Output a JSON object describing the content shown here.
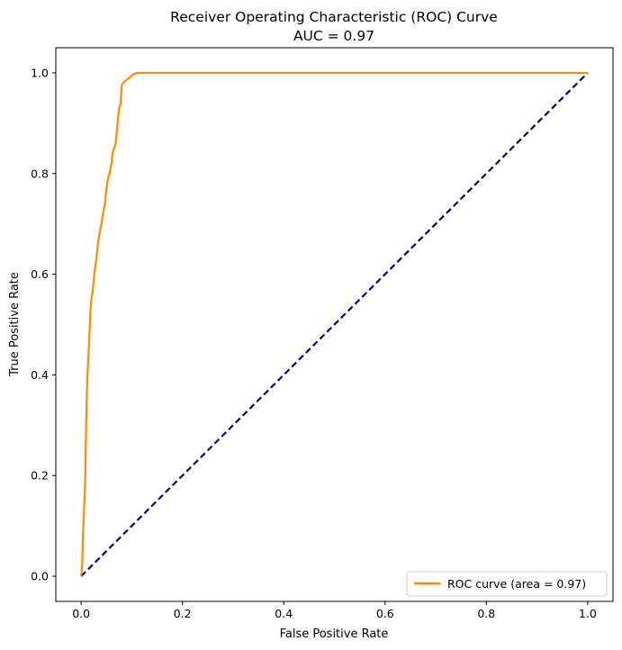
{
  "chart_data": {
    "type": "line",
    "title": "Receiver Operating Characteristic (ROC) Curve",
    "subtitle": "AUC = 0.97",
    "xlabel": "False Positive Rate",
    "ylabel": "True Positive Rate",
    "xlim": [
      -0.05,
      1.05
    ],
    "ylim": [
      -0.05,
      1.05
    ],
    "xticks": [
      0.0,
      0.2,
      0.4,
      0.6,
      0.8,
      1.0
    ],
    "yticks": [
      0.0,
      0.2,
      0.4,
      0.6,
      0.8,
      1.0
    ],
    "xtick_labels": [
      "0.0",
      "0.2",
      "0.4",
      "0.6",
      "0.8",
      "1.0"
    ],
    "ytick_labels": [
      "0.0",
      "0.2",
      "0.4",
      "0.6",
      "0.8",
      "1.0"
    ],
    "grid": false,
    "legend": {
      "position": "lower-right",
      "entries": [
        "ROC curve (area = 0.97)"
      ]
    },
    "series": [
      {
        "name": "ROC curve (area = 0.97)",
        "color": "#ff8c00",
        "style": "solid",
        "x": [
          0.0,
          0.002,
          0.004,
          0.006,
          0.008,
          0.01,
          0.012,
          0.014,
          0.016,
          0.018,
          0.02,
          0.022,
          0.024,
          0.026,
          0.03,
          0.033,
          0.036,
          0.04,
          0.043,
          0.047,
          0.05,
          0.053,
          0.056,
          0.06,
          0.062,
          0.065,
          0.068,
          0.07,
          0.072,
          0.075,
          0.078,
          0.08,
          0.083,
          0.088,
          0.095,
          0.1,
          0.105,
          0.11,
          0.13,
          0.3,
          0.6,
          1.0
        ],
        "y": [
          0.0,
          0.02,
          0.09,
          0.14,
          0.19,
          0.31,
          0.39,
          0.43,
          0.47,
          0.52,
          0.55,
          0.56,
          0.58,
          0.6,
          0.63,
          0.66,
          0.68,
          0.7,
          0.72,
          0.74,
          0.77,
          0.79,
          0.8,
          0.82,
          0.84,
          0.85,
          0.86,
          0.88,
          0.9,
          0.93,
          0.94,
          0.975,
          0.98,
          0.985,
          0.99,
          0.995,
          0.998,
          1.0,
          1.0,
          1.0,
          1.0,
          1.0
        ]
      },
      {
        "name": "",
        "color": "#000080",
        "style": "dashed",
        "x": [
          0.0,
          1.0
        ],
        "y": [
          0.0,
          1.0
        ]
      }
    ]
  }
}
